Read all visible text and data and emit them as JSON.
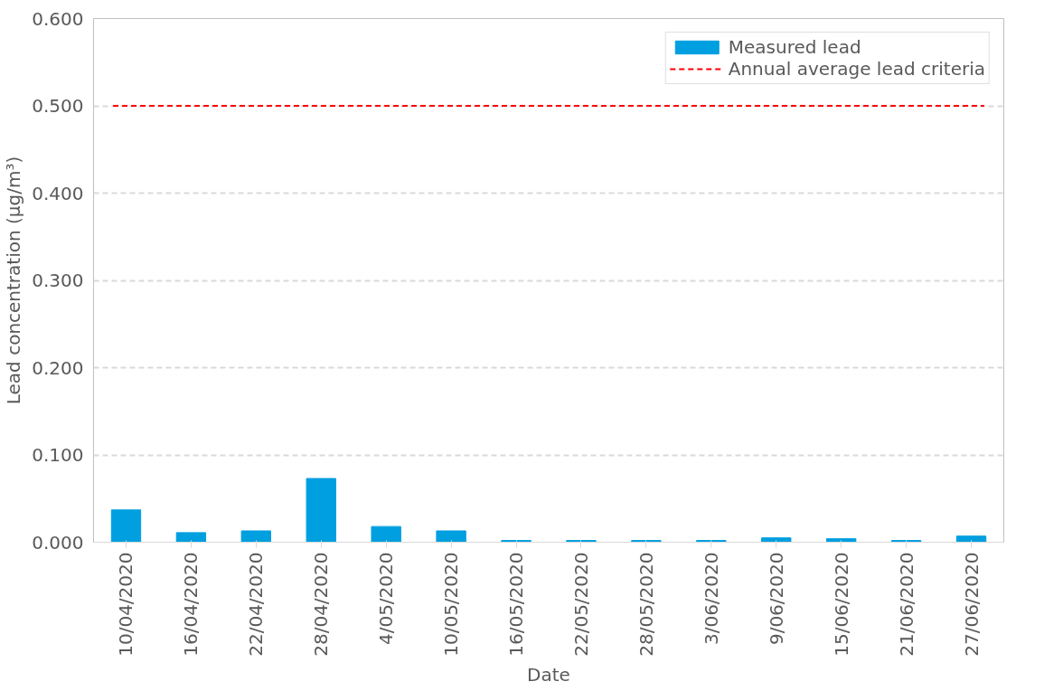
{
  "chart_data": {
    "type": "bar",
    "xlabel": "Date",
    "ylabel": "Lead concentration (µg/m³)",
    "categories": [
      "10/04/2020",
      "16/04/2020",
      "22/04/2020",
      "28/04/2020",
      "4/05/2020",
      "10/05/2020",
      "16/05/2020",
      "22/05/2020",
      "28/05/2020",
      "3/06/2020",
      "9/06/2020",
      "15/06/2020",
      "21/06/2020",
      "27/06/2020"
    ],
    "series": [
      {
        "name": "Measured lead",
        "color": "#009fe0",
        "values": [
          0.037,
          0.011,
          0.013,
          0.073,
          0.018,
          0.013,
          0.002,
          0.002,
          0.002,
          0.002,
          0.005,
          0.004,
          0.002,
          0.007
        ]
      }
    ],
    "ref_lines": [
      {
        "axis": "y",
        "value": 0.5,
        "label": "Annual average lead criteria",
        "color": "#ff0000",
        "line_style": "dashed"
      }
    ],
    "ylim": [
      0,
      0.6
    ],
    "yticks": [
      {
        "value": 0,
        "label": "0.000"
      },
      {
        "value": 0.1,
        "label": "0.100"
      },
      {
        "value": 0.2,
        "label": "0.200"
      },
      {
        "value": 0.3,
        "label": "0.300"
      },
      {
        "value": 0.4,
        "label": "0.400"
      },
      {
        "value": 0.5,
        "label": "0.500"
      },
      {
        "value": 0.6,
        "label": "0.600"
      }
    ],
    "grid": "y",
    "legend": "top right"
  }
}
